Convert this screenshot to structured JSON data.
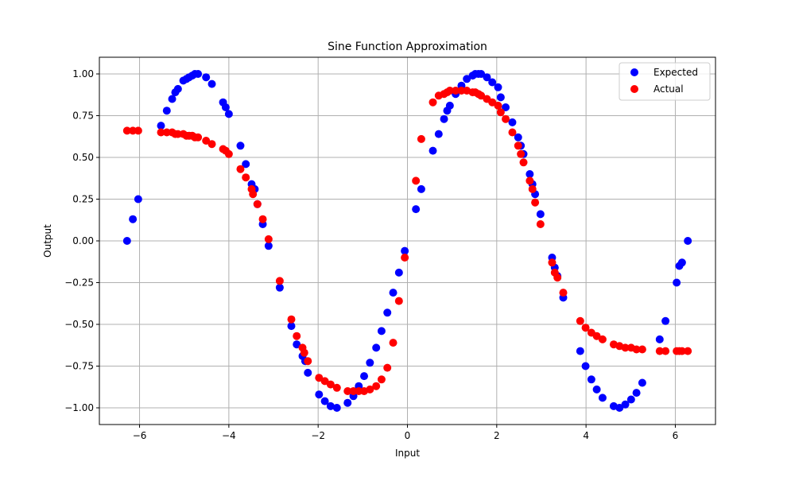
{
  "chart_data": {
    "type": "scatter",
    "title": "Sine Function Approximation",
    "xlabel": "Input",
    "ylabel": "Output",
    "xlim": [
      -6.9,
      6.9
    ],
    "ylim": [
      -1.1,
      1.1
    ],
    "xticks": [
      -6,
      -4,
      -2,
      0,
      2,
      4,
      6
    ],
    "yticks": [
      -1.0,
      -0.75,
      -0.5,
      -0.25,
      0.0,
      0.25,
      0.5,
      0.75,
      1.0
    ],
    "xtick_labels": [
      "−6",
      "−4",
      "−2",
      "0",
      "2",
      "4",
      "6"
    ],
    "ytick_labels": [
      "−1.00",
      "−0.75",
      "−0.50",
      "−0.25",
      "0.00",
      "0.25",
      "0.50",
      "0.75",
      "1.00"
    ],
    "grid": true,
    "legend": "top-right",
    "series": [
      {
        "name": "Expected",
        "color": "#0000ff",
        "points": [
          [
            -6.28,
            0.0
          ],
          [
            -6.15,
            0.13
          ],
          [
            -6.03,
            0.25
          ],
          [
            -5.52,
            0.69
          ],
          [
            -5.39,
            0.78
          ],
          [
            -5.27,
            0.85
          ],
          [
            -5.2,
            0.89
          ],
          [
            -5.14,
            0.91
          ],
          [
            -5.02,
            0.96
          ],
          [
            -4.95,
            0.97
          ],
          [
            -4.89,
            0.98
          ],
          [
            -4.82,
            0.99
          ],
          [
            -4.76,
            1.0
          ],
          [
            -4.69,
            1.0
          ],
          [
            -4.51,
            0.98
          ],
          [
            -4.38,
            0.94
          ],
          [
            -4.13,
            0.83
          ],
          [
            -4.07,
            0.8
          ],
          [
            -4.0,
            0.76
          ],
          [
            -3.74,
            0.57
          ],
          [
            -3.62,
            0.46
          ],
          [
            -3.49,
            0.34
          ],
          [
            -3.42,
            0.31
          ],
          [
            -3.36,
            0.22
          ],
          [
            -3.24,
            0.1
          ],
          [
            -3.11,
            -0.03
          ],
          [
            -2.86,
            -0.28
          ],
          [
            -2.6,
            -0.51
          ],
          [
            -2.48,
            -0.62
          ],
          [
            -2.35,
            -0.69
          ],
          [
            -2.29,
            -0.72
          ],
          [
            -2.23,
            -0.79
          ],
          [
            -1.98,
            -0.92
          ],
          [
            -1.85,
            -0.96
          ],
          [
            -1.72,
            -0.99
          ],
          [
            -1.58,
            -1.0
          ],
          [
            -1.34,
            -0.97
          ],
          [
            -1.21,
            -0.93
          ],
          [
            -1.09,
            -0.87
          ],
          [
            -0.97,
            -0.81
          ],
          [
            -0.84,
            -0.73
          ],
          [
            -0.7,
            -0.64
          ],
          [
            -0.58,
            -0.54
          ],
          [
            -0.45,
            -0.43
          ],
          [
            -0.32,
            -0.31
          ],
          [
            -0.19,
            -0.19
          ],
          [
            -0.06,
            -0.06
          ],
          [
            0.19,
            0.19
          ],
          [
            0.31,
            0.31
          ],
          [
            0.57,
            0.54
          ],
          [
            0.7,
            0.64
          ],
          [
            0.82,
            0.73
          ],
          [
            0.89,
            0.78
          ],
          [
            0.95,
            0.81
          ],
          [
            1.08,
            0.88
          ],
          [
            1.21,
            0.93
          ],
          [
            1.33,
            0.97
          ],
          [
            1.46,
            0.99
          ],
          [
            1.52,
            1.0
          ],
          [
            1.59,
            1.0
          ],
          [
            1.65,
            1.0
          ],
          [
            1.78,
            0.98
          ],
          [
            1.9,
            0.95
          ],
          [
            2.03,
            0.92
          ],
          [
            2.09,
            0.86
          ],
          [
            2.2,
            0.8
          ],
          [
            2.35,
            0.71
          ],
          [
            2.48,
            0.62
          ],
          [
            2.54,
            0.57
          ],
          [
            2.6,
            0.52
          ],
          [
            2.74,
            0.4
          ],
          [
            2.8,
            0.34
          ],
          [
            2.86,
            0.28
          ],
          [
            2.98,
            0.16
          ],
          [
            3.24,
            -0.1
          ],
          [
            3.3,
            -0.16
          ],
          [
            3.36,
            -0.21
          ],
          [
            3.49,
            -0.34
          ],
          [
            3.87,
            -0.66
          ],
          [
            3.99,
            -0.75
          ],
          [
            4.12,
            -0.83
          ],
          [
            4.24,
            -0.89
          ],
          [
            4.37,
            -0.94
          ],
          [
            4.62,
            -0.99
          ],
          [
            4.75,
            -1.0
          ],
          [
            4.88,
            -0.98
          ],
          [
            5.01,
            -0.95
          ],
          [
            5.13,
            -0.91
          ],
          [
            5.26,
            -0.85
          ],
          [
            5.65,
            -0.59
          ],
          [
            5.78,
            -0.48
          ],
          [
            6.03,
            -0.25
          ],
          [
            6.09,
            -0.15
          ],
          [
            6.15,
            -0.13
          ],
          [
            6.28,
            0.0
          ]
        ]
      },
      {
        "name": "Actual",
        "color": "#ff0000",
        "points": [
          [
            -6.28,
            0.66
          ],
          [
            -6.15,
            0.66
          ],
          [
            -6.03,
            0.66
          ],
          [
            -5.52,
            0.65
          ],
          [
            -5.39,
            0.65
          ],
          [
            -5.27,
            0.65
          ],
          [
            -5.2,
            0.64
          ],
          [
            -5.14,
            0.64
          ],
          [
            -5.02,
            0.64
          ],
          [
            -4.95,
            0.63
          ],
          [
            -4.89,
            0.63
          ],
          [
            -4.82,
            0.63
          ],
          [
            -4.76,
            0.62
          ],
          [
            -4.69,
            0.62
          ],
          [
            -4.51,
            0.6
          ],
          [
            -4.38,
            0.58
          ],
          [
            -4.13,
            0.55
          ],
          [
            -4.07,
            0.54
          ],
          [
            -4.0,
            0.52
          ],
          [
            -3.74,
            0.43
          ],
          [
            -3.62,
            0.38
          ],
          [
            -3.49,
            0.31
          ],
          [
            -3.46,
            0.28
          ],
          [
            -3.36,
            0.22
          ],
          [
            -3.24,
            0.13
          ],
          [
            -3.11,
            0.01
          ],
          [
            -2.86,
            -0.24
          ],
          [
            -2.6,
            -0.47
          ],
          [
            -2.48,
            -0.57
          ],
          [
            -2.35,
            -0.64
          ],
          [
            -2.31,
            -0.67
          ],
          [
            -2.23,
            -0.72
          ],
          [
            -1.98,
            -0.82
          ],
          [
            -1.85,
            -0.84
          ],
          [
            -1.72,
            -0.86
          ],
          [
            -1.58,
            -0.88
          ],
          [
            -1.34,
            -0.9
          ],
          [
            -1.21,
            -0.9
          ],
          [
            -1.09,
            -0.9
          ],
          [
            -0.97,
            -0.9
          ],
          [
            -0.84,
            -0.89
          ],
          [
            -0.7,
            -0.87
          ],
          [
            -0.58,
            -0.83
          ],
          [
            -0.45,
            -0.76
          ],
          [
            -0.32,
            -0.61
          ],
          [
            -0.19,
            -0.36
          ],
          [
            -0.06,
            -0.1
          ],
          [
            0.19,
            0.36
          ],
          [
            0.31,
            0.61
          ],
          [
            0.57,
            0.83
          ],
          [
            0.7,
            0.87
          ],
          [
            0.82,
            0.88
          ],
          [
            0.89,
            0.89
          ],
          [
            0.95,
            0.9
          ],
          [
            1.08,
            0.9
          ],
          [
            1.21,
            0.9
          ],
          [
            1.33,
            0.9
          ],
          [
            1.46,
            0.89
          ],
          [
            1.52,
            0.89
          ],
          [
            1.59,
            0.88
          ],
          [
            1.65,
            0.87
          ],
          [
            1.78,
            0.85
          ],
          [
            1.9,
            0.83
          ],
          [
            2.03,
            0.81
          ],
          [
            2.09,
            0.77
          ],
          [
            2.2,
            0.73
          ],
          [
            2.35,
            0.65
          ],
          [
            2.48,
            0.57
          ],
          [
            2.54,
            0.52
          ],
          [
            2.6,
            0.47
          ],
          [
            2.74,
            0.36
          ],
          [
            2.8,
            0.31
          ],
          [
            2.86,
            0.23
          ],
          [
            2.98,
            0.1
          ],
          [
            3.24,
            -0.13
          ],
          [
            3.3,
            -0.19
          ],
          [
            3.36,
            -0.22
          ],
          [
            3.49,
            -0.31
          ],
          [
            3.87,
            -0.48
          ],
          [
            3.99,
            -0.52
          ],
          [
            4.12,
            -0.55
          ],
          [
            4.24,
            -0.57
          ],
          [
            4.37,
            -0.59
          ],
          [
            4.62,
            -0.62
          ],
          [
            4.75,
            -0.63
          ],
          [
            4.88,
            -0.64
          ],
          [
            5.01,
            -0.64
          ],
          [
            5.13,
            -0.65
          ],
          [
            5.26,
            -0.65
          ],
          [
            5.65,
            -0.66
          ],
          [
            5.78,
            -0.66
          ],
          [
            6.03,
            -0.66
          ],
          [
            6.09,
            -0.66
          ],
          [
            6.15,
            -0.66
          ],
          [
            6.28,
            -0.66
          ]
        ]
      }
    ]
  }
}
